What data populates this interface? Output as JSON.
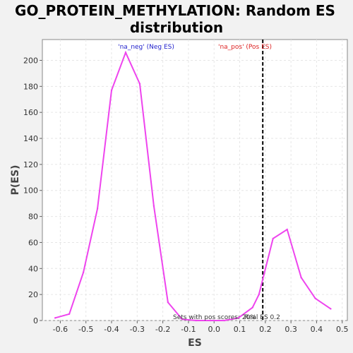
{
  "chart_data": {
    "type": "line",
    "title_lines": [
      "GO_PROTEIN_METHYLATION: Random ES",
      "distribution"
    ],
    "xlabel": "ES",
    "ylabel": "P(ES)",
    "xlim": [
      -0.67,
      0.52
    ],
    "ylim": [
      0,
      216
    ],
    "xticks": [
      -0.6,
      -0.5,
      -0.4,
      -0.3,
      -0.2,
      -0.1,
      0.0,
      0.1,
      0.2,
      0.3,
      0.4,
      0.5
    ],
    "xtick_labels": [
      "-0.6",
      "-0.5",
      "-0.4",
      "-0.3",
      "-0.2",
      "-0.1",
      "0.0",
      "0.1",
      "0.2",
      "0.3",
      "0.4",
      "0.5"
    ],
    "yticks": [
      0,
      20,
      40,
      60,
      80,
      100,
      120,
      140,
      160,
      180,
      200
    ],
    "ytick_labels": [
      "0",
      "20",
      "40",
      "60",
      "80",
      "100",
      "120",
      "140",
      "160",
      "180",
      "200"
    ],
    "grid": true,
    "series_color": "#ee44ee",
    "x": [
      -0.62,
      -0.565,
      -0.51,
      -0.455,
      -0.4,
      -0.345,
      -0.29,
      -0.235,
      -0.18,
      -0.125,
      -0.07,
      -0.015,
      0.04,
      0.095,
      0.15,
      0.175,
      0.23,
      0.285,
      0.34,
      0.395,
      0.455
    ],
    "y": [
      2,
      5,
      37,
      86,
      177,
      206,
      182,
      88,
      14,
      1,
      0,
      0,
      0,
      2,
      10,
      20,
      63,
      70,
      33,
      17,
      9
    ],
    "real_es": 0.19,
    "annotations": {
      "neg_label": "'na_neg' (Neg ES)",
      "pos_label": "'na_pos' (Pos ES)",
      "neg_color": "#2222cc",
      "pos_color": "#dd2222",
      "bottom_left": "Sets with pos scores: 20%",
      "bottom_right": "Real ES 0.2"
    }
  }
}
